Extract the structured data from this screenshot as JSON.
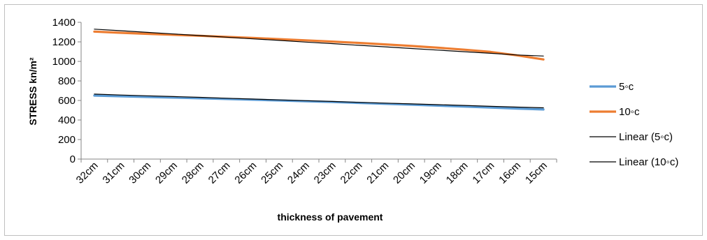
{
  "chart_data": {
    "type": "line",
    "title": "",
    "xlabel": "thickness  of pavement",
    "ylabel": "STRESS kn/m²",
    "categories": [
      "32cm",
      "31cm",
      "30cm",
      "29cm",
      "28cm",
      "27cm",
      "26cm",
      "25cm",
      "24cm",
      "23cm",
      "22cm",
      "21cm",
      "20cm",
      "19cm",
      "18cm",
      "17cm",
      "16cm",
      "15cm"
    ],
    "ylim": [
      0,
      1400
    ],
    "yticks": [
      "0",
      "200",
      "400",
      "600",
      "800",
      "1000",
      "1200",
      "1400"
    ],
    "grid": false,
    "legend_position": "right",
    "series": [
      {
        "name": "5◦c",
        "color": "#5B9BD5",
        "kind": "data",
        "values": [
          650,
          643,
          636,
          629,
          622,
          615,
          608,
          600,
          592,
          584,
          575,
          566,
          557,
          547,
          537,
          527,
          517,
          508
        ]
      },
      {
        "name": "10◦c",
        "color": "#ED7D31",
        "kind": "data",
        "values": [
          1305,
          1293,
          1282,
          1272,
          1262,
          1251,
          1240,
          1228,
          1216,
          1203,
          1189,
          1174,
          1158,
          1140,
          1120,
          1097,
          1062,
          1020
        ]
      },
      {
        "name": "Linear (5◦c)",
        "color": "#000000",
        "kind": "trend",
        "values": [
          665,
          656,
          648,
          640,
          632,
          623,
          614,
          606,
          598,
          590,
          581,
          573,
          565,
          557,
          549,
          540,
          532,
          525
        ]
      },
      {
        "name": "Linear (10◦c)",
        "color": "#000000",
        "kind": "trend",
        "values": [
          1330,
          1314,
          1297,
          1281,
          1264,
          1248,
          1231,
          1215,
          1198,
          1182,
          1165,
          1149,
          1132,
          1116,
          1099,
          1083,
          1066,
          1055
        ]
      }
    ]
  }
}
